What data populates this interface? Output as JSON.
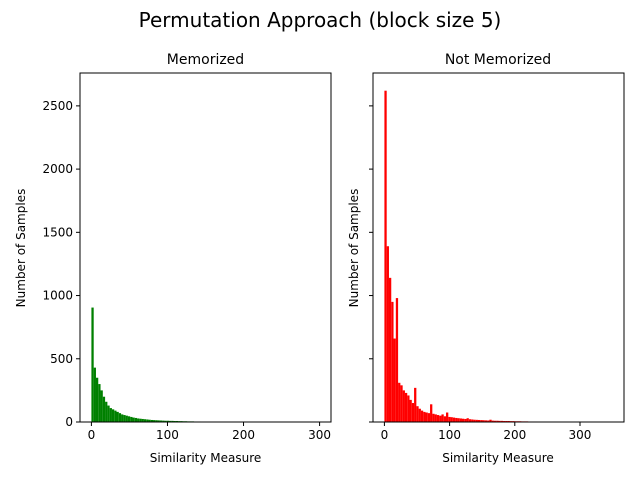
{
  "figure": {
    "suptitle": "Permutation Approach (block size 5)"
  },
  "chart_data": [
    {
      "type": "bar",
      "subtype": "histogram",
      "title": "Memorized",
      "xlabel": "Similarity Measure",
      "ylabel": "Number of Samples",
      "color": "#008000",
      "xlim": [
        -15,
        315
      ],
      "ylim": [
        0,
        2760
      ],
      "xticks": [
        0,
        100,
        200,
        300
      ],
      "yticks": [
        0,
        500,
        1000,
        1500,
        2000,
        2500
      ],
      "bin_width": 3.0,
      "bin_start": 0,
      "values": [
        905,
        430,
        350,
        300,
        250,
        200,
        160,
        130,
        110,
        100,
        90,
        80,
        70,
        60,
        55,
        50,
        45,
        40,
        35,
        32,
        28,
        26,
        24,
        22,
        20,
        18,
        16,
        15,
        14,
        13,
        12,
        11,
        10,
        10,
        9,
        9,
        8,
        8,
        7,
        7,
        6,
        6,
        5,
        5,
        5,
        4,
        4,
        4,
        3,
        3,
        3,
        3,
        2,
        2,
        2,
        2,
        2,
        1,
        1,
        1,
        1,
        1,
        1,
        1,
        1,
        0,
        0,
        1,
        0,
        0,
        0,
        0,
        0,
        0,
        0,
        0,
        0,
        0,
        0,
        0,
        0,
        0,
        0,
        0,
        0,
        0,
        0,
        0,
        0,
        0,
        0,
        0,
        0,
        0,
        0,
        0,
        0,
        0,
        0,
        1
      ]
    },
    {
      "type": "bar",
      "subtype": "histogram",
      "title": "Not Memorized",
      "xlabel": "Similarity Measure",
      "ylabel": "Number of Samples",
      "color": "#ff0000",
      "xlim": [
        -17.5,
        367.5
      ],
      "ylim": [
        0,
        2760
      ],
      "xticks": [
        0,
        100,
        200,
        300
      ],
      "yticks": [
        0,
        500,
        1000,
        1500,
        2000,
        2500
      ],
      "bin_width": 3.5,
      "bin_start": 0,
      "values": [
        2620,
        1390,
        1140,
        950,
        660,
        980,
        310,
        290,
        250,
        230,
        210,
        175,
        150,
        270,
        125,
        105,
        90,
        80,
        75,
        70,
        140,
        65,
        60,
        55,
        50,
        60,
        45,
        75,
        40,
        38,
        35,
        32,
        30,
        28,
        26,
        24,
        30,
        22,
        20,
        18,
        17,
        16,
        15,
        14,
        13,
        12,
        18,
        11,
        10,
        10,
        9,
        9,
        8,
        8,
        8,
        7,
        7,
        6,
        6,
        6,
        5,
        5,
        5,
        4,
        4,
        4,
        4,
        3,
        3,
        3,
        3,
        3,
        2,
        2,
        2,
        2,
        2,
        2,
        1,
        1,
        1,
        1,
        1,
        1,
        1,
        1,
        0,
        1,
        0,
        0,
        0,
        0,
        0,
        0,
        0,
        0,
        0,
        0,
        0,
        1
      ]
    }
  ]
}
